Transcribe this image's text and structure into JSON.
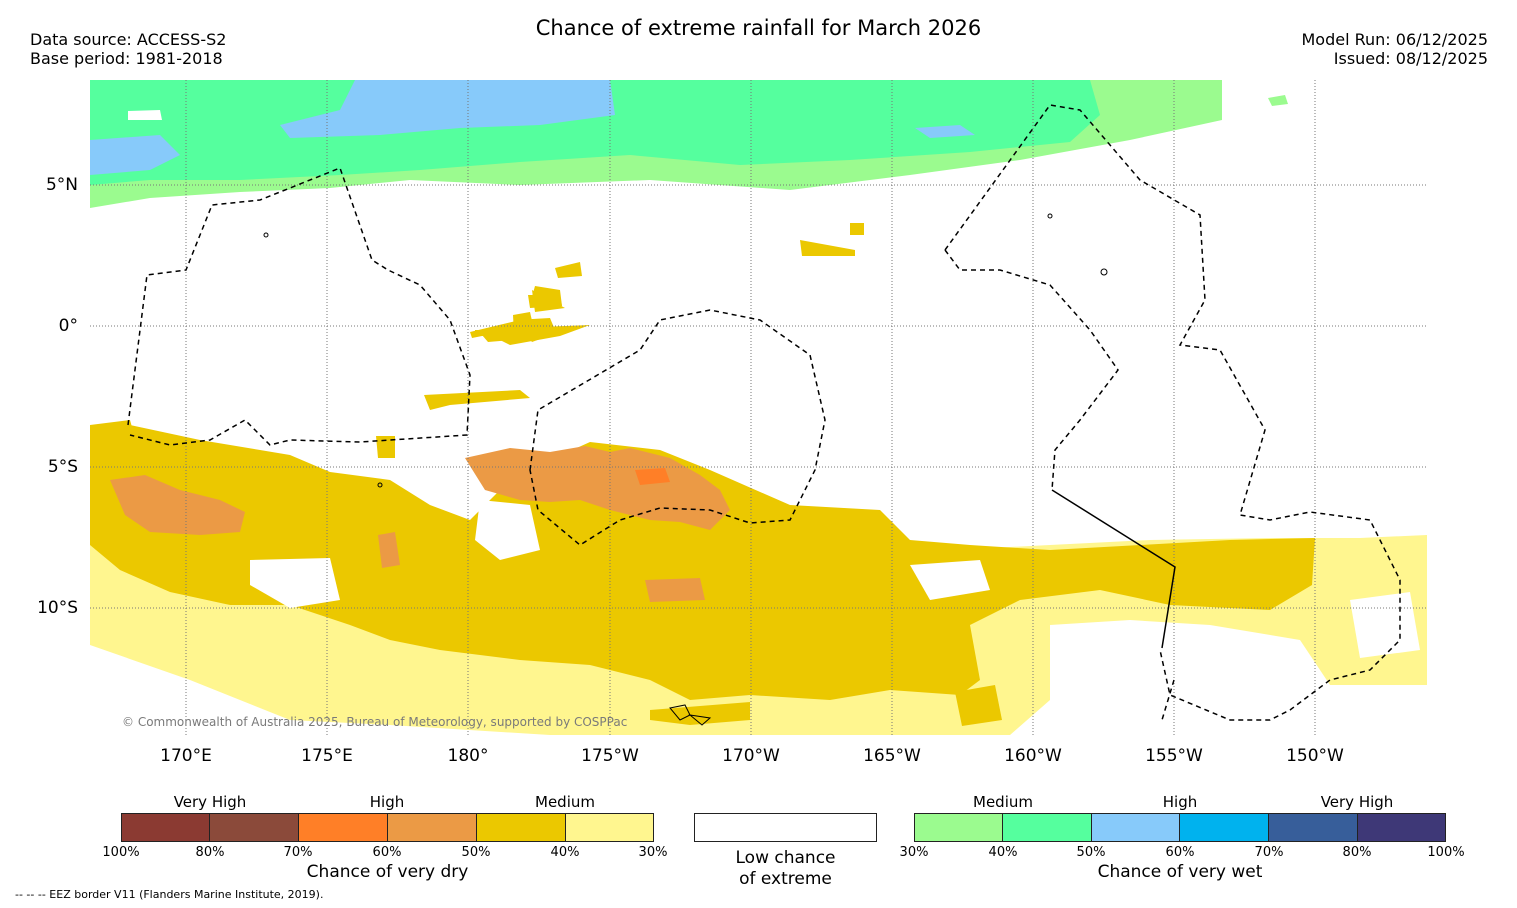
{
  "header": {
    "title": "Chance of extreme rainfall for March 2026",
    "data_source": "Data source: ACCESS-S2",
    "base_period": "Base period: 1981-2018",
    "model_run": "Model Run: 06/12/2025",
    "issued": "Issued: 08/12/2025"
  },
  "map": {
    "lat_labels": [
      "5°N",
      "0°",
      "5°S",
      "10°S"
    ],
    "lon_labels": [
      "170°E",
      "175°E",
      "180°",
      "175°W",
      "170°W",
      "165°W",
      "160°W",
      "155°W",
      "150°W"
    ],
    "copyright": "© Commonwealth of Australia 2025, Bureau of Meteorology, supported by COSPPac"
  },
  "legend_dry": {
    "category_labels": [
      "Very High",
      "High",
      "Medium"
    ],
    "tick_labels": [
      "100%",
      "80%",
      "70%",
      "60%",
      "50%",
      "40%",
      "30%"
    ],
    "colors": [
      "#8b3a32",
      "#8b4a3a",
      "#ff7f27",
      "#eb9a45",
      "#ebc800",
      "#fff68f"
    ],
    "title": "Chance of very dry"
  },
  "legend_low": {
    "line1": "Low chance",
    "line2": "of extreme",
    "color": "#ffffff"
  },
  "legend_wet": {
    "category_labels": [
      "Medium",
      "High",
      "Very High"
    ],
    "tick_labels": [
      "30%",
      "40%",
      "50%",
      "60%",
      "70%",
      "80%",
      "100%"
    ],
    "colors": [
      "#9bfb8f",
      "#55ff9e",
      "#87cafa",
      "#00b2ee",
      "#375e9a",
      "#3e3877"
    ],
    "title": "Chance of very wet"
  },
  "footer": {
    "eez_note": "--  --  -- EEZ border V11 (Flanders Marine Institute, 2019)."
  }
}
